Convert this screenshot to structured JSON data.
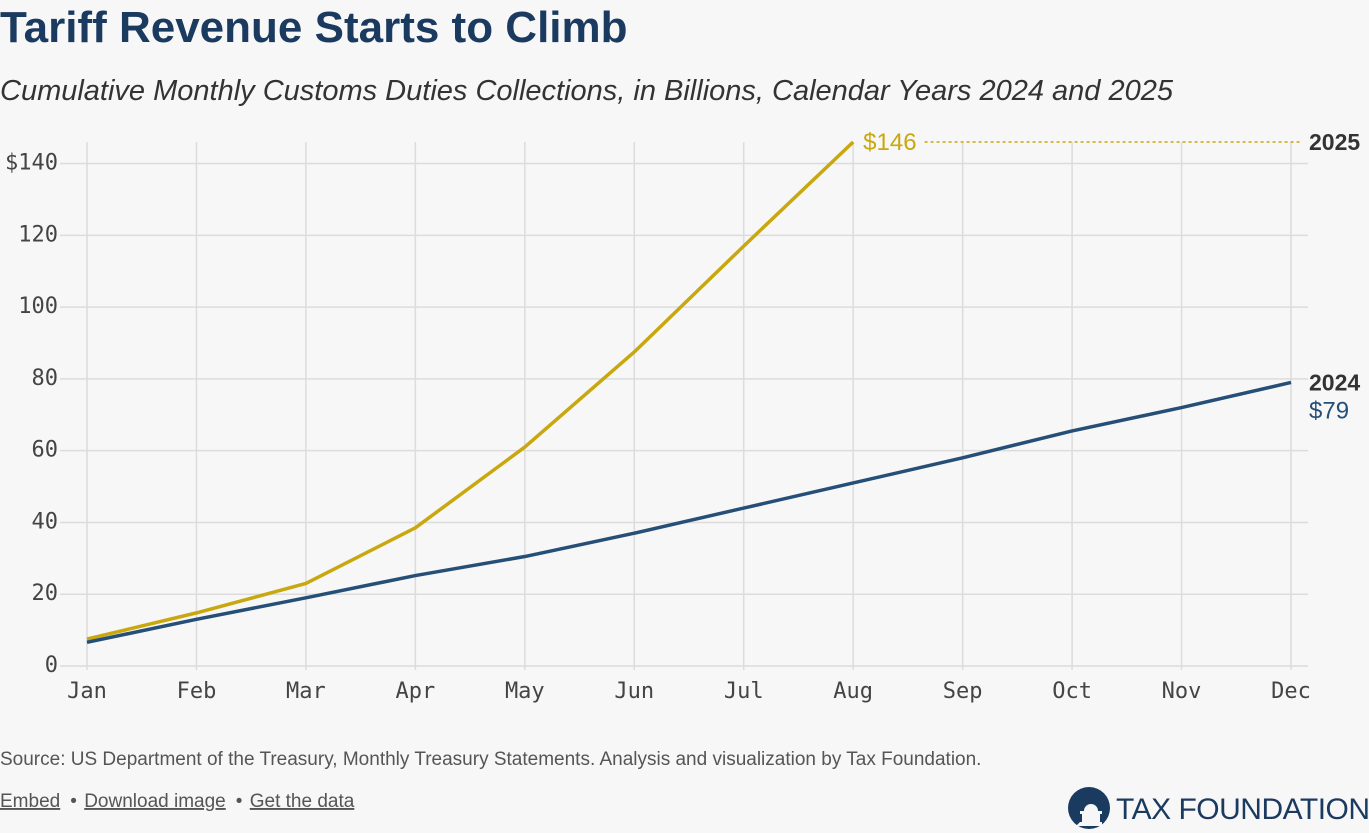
{
  "chart_data": {
    "type": "line",
    "title": "Tariff Revenue Starts to Climb",
    "subtitle": "Cumulative Monthly Customs Duties Collections, in Billions, Calendar Years 2024 and 2025",
    "categories": [
      "Jan",
      "Feb",
      "Mar",
      "Apr",
      "May",
      "Jun",
      "Jul",
      "Aug",
      "Sep",
      "Oct",
      "Nov",
      "Dec"
    ],
    "series": [
      {
        "name": "2025",
        "color": "#c9a70f",
        "values": [
          7.5,
          14.8,
          23,
          38.5,
          61,
          87.5,
          117,
          146,
          null,
          null,
          null,
          null
        ],
        "value_labels": [
          null,
          null,
          null,
          null,
          null,
          null,
          null,
          "$146",
          null,
          null,
          null,
          null
        ]
      },
      {
        "name": "2024",
        "color": "#264f78",
        "values": [
          6.6,
          13,
          19,
          25.2,
          30.5,
          37,
          44,
          51,
          58,
          65.5,
          72,
          79
        ],
        "value_labels": [
          null,
          null,
          null,
          null,
          null,
          null,
          null,
          null,
          null,
          null,
          null,
          "$79"
        ]
      }
    ],
    "ylim": [
      0,
      146
    ],
    "yticks": [
      0,
      20,
      40,
      60,
      80,
      100,
      120,
      {
        "value": 140,
        "label": "$140"
      }
    ],
    "grid": true,
    "source": "Source: US Department of the Treasury, Monthly Treasury Statements. Analysis and visualization by Tax Foundation.",
    "links": [
      "Embed",
      "Download image",
      "Get the data"
    ],
    "logo": "TAX FOUNDATION"
  }
}
